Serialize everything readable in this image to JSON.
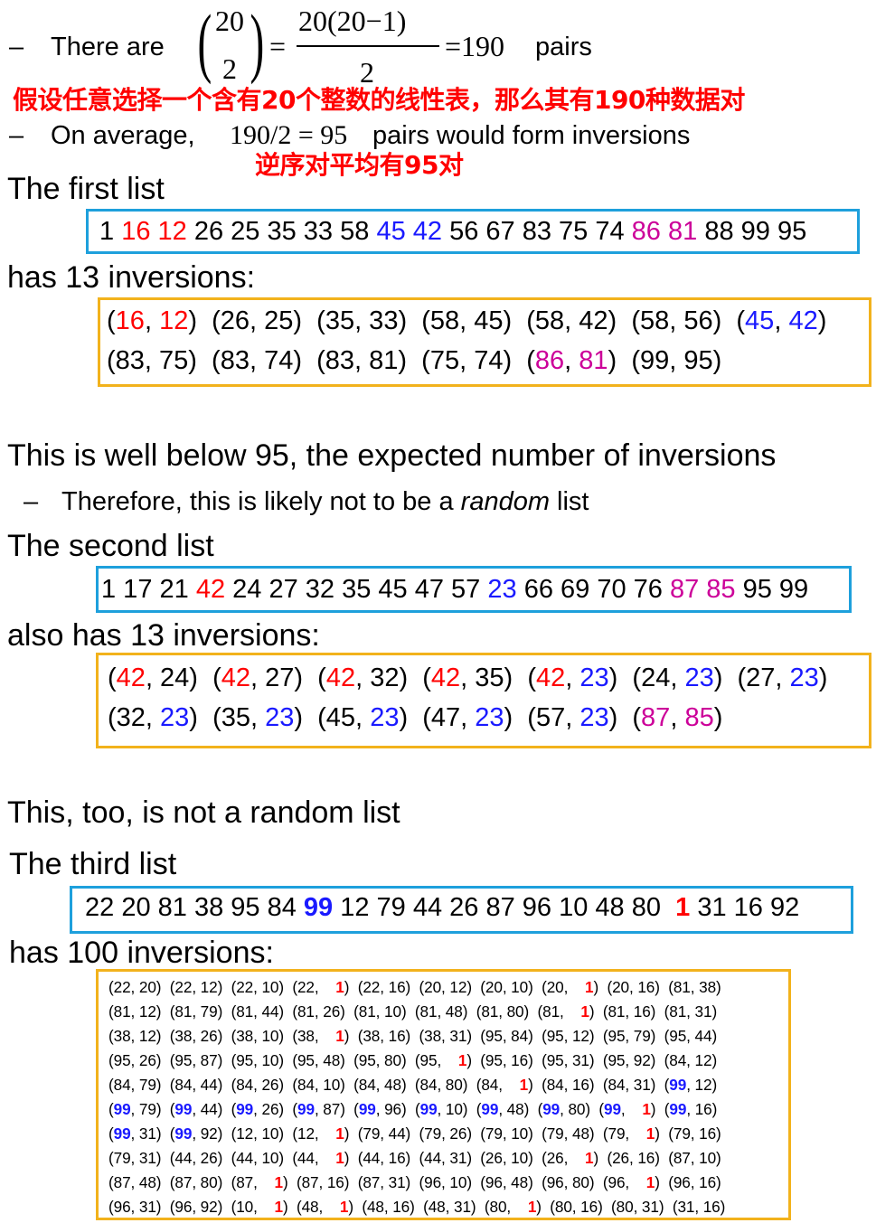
{
  "line1": {
    "dash": "–",
    "lead": "There are",
    "binom_top": "20",
    "binom_bottom": "2",
    "eq1": "=",
    "frac_num": "20(20−1)",
    "frac_den": "2",
    "eq2": "=190",
    "tail": "pairs"
  },
  "note_cn_1": "假设任意选择一个含有20个整数的线性表，那么其有190种数据对",
  "line2": {
    "dash": "–",
    "lead": "On average,",
    "expr": "190/2 = 95",
    "tail": "pairs would form inversions"
  },
  "note_cn_2": "逆序对平均有95对",
  "first": {
    "heading": "The first list",
    "list_plain": [
      "1",
      "26 25 35 33 58",
      "56 67 83 75 74",
      "88 99 95"
    ],
    "list_red": [
      "16",
      "12"
    ],
    "list_blue": [
      "45",
      "42"
    ],
    "list_magenta": [
      "86",
      "81"
    ],
    "inv_heading": "has 13 inversions:"
  },
  "para1": "This is well below 95, the expected number of inversions",
  "para1_sub_dash": "–",
  "para1_sub_pre": "Therefore, this is likely not to be a ",
  "para1_sub_em": "random",
  "para1_sub_post": " list",
  "second": {
    "heading": "The second list",
    "list_a": "1 17 21",
    "list_red": "42",
    "list_b": "24 27 32 35 45 47 57",
    "list_blue": "23",
    "list_c": "66 69 70 76",
    "list_m1": "87",
    "list_m2": "85",
    "list_d": "95 99",
    "inv_heading": "also has 13 inversions:"
  },
  "para2": "This, too, is not a random list",
  "third": {
    "heading": "The third list",
    "list_a": "22 20 81 38 95 84",
    "list_bold_blue": "99",
    "list_b": "12 79 44 26 87 96 10 48 80",
    "list_bold_red": "1",
    "list_c": "31 16 92",
    "inv_heading": "has 100 inversions:"
  },
  "colors": {
    "red": "#ff0000",
    "blue": "#1a1aff",
    "magenta": "#cc0099",
    "box_blue": "#1ea0dc",
    "box_orange": "#f2b21c"
  }
}
